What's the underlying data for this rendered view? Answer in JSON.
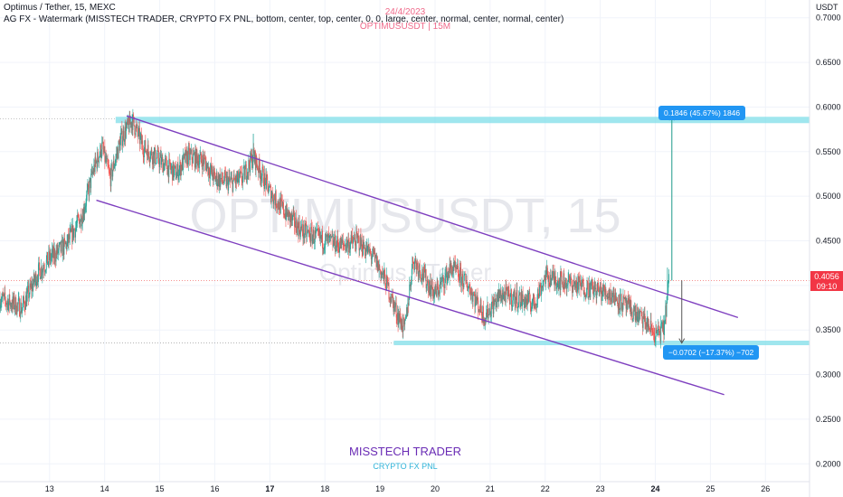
{
  "header": {
    "title": "Optimus / Tether, 15, MEXC",
    "indicator": "AG FX - Watermark (MISSTECH TRADER, CRYPTO FX PNL, bottom, center, top, center, 0, 0, large, center, normal, center, normal, center)"
  },
  "watermark": {
    "date": "24/4/2023",
    "pair_interval": "OPTIMUSUSDT | 15M",
    "big": "OPTIMUSUSDT, 15",
    "sub": "Optimus / Tether"
  },
  "brand": {
    "name": "MISSTECH TRADER",
    "sub": "CRYPTO FX PNL"
  },
  "measurements": {
    "up": "0.1846 (45.67%) 1846",
    "down": "−0.0702 (−17.37%) −702"
  },
  "price_tag": {
    "price": "0.4056",
    "countdown": "09:10"
  },
  "colors": {
    "up": "#26a69a",
    "down": "#ef5350",
    "channel": "#7e3fbf",
    "zone": "#7fdde8",
    "badge": "#2196f3",
    "measure": "#1e9a8a"
  },
  "chart_data": {
    "type": "candlestick",
    "currency": "USDT",
    "x_ticks": [
      "13",
      "14",
      "15",
      "16",
      "17",
      "18",
      "19",
      "20",
      "21",
      "22",
      "23",
      "24",
      "25",
      "26"
    ],
    "y_ticks": [
      "0.7000",
      "0.6500",
      "0.6000",
      "0.5500",
      "0.5000",
      "0.4500",
      "0.4000",
      "0.3500",
      "0.3000",
      "0.2500",
      "0.2000"
    ],
    "ylim": [
      0.18,
      0.72
    ],
    "xlim": [
      12.1,
      26.8
    ],
    "price_path": [
      [
        12.1,
        0.385
      ],
      [
        12.5,
        0.375
      ],
      [
        12.8,
        0.415
      ],
      [
        13.0,
        0.43
      ],
      [
        13.3,
        0.445
      ],
      [
        13.6,
        0.48
      ],
      [
        13.8,
        0.53
      ],
      [
        13.95,
        0.555
      ],
      [
        14.1,
        0.52
      ],
      [
        14.3,
        0.565
      ],
      [
        14.5,
        0.585
      ],
      [
        14.7,
        0.555
      ],
      [
        14.9,
        0.545
      ],
      [
        15.1,
        0.535
      ],
      [
        15.3,
        0.525
      ],
      [
        15.5,
        0.545
      ],
      [
        15.8,
        0.54
      ],
      [
        16.0,
        0.52
      ],
      [
        16.3,
        0.515
      ],
      [
        16.5,
        0.52
      ],
      [
        16.7,
        0.545
      ],
      [
        16.85,
        0.525
      ],
      [
        17.0,
        0.505
      ],
      [
        17.3,
        0.48
      ],
      [
        17.6,
        0.46
      ],
      [
        18.0,
        0.45
      ],
      [
        18.3,
        0.445
      ],
      [
        18.6,
        0.45
      ],
      [
        18.9,
        0.43
      ],
      [
        19.1,
        0.405
      ],
      [
        19.3,
        0.37
      ],
      [
        19.45,
        0.35
      ],
      [
        19.6,
        0.43
      ],
      [
        19.8,
        0.41
      ],
      [
        20.0,
        0.39
      ],
      [
        20.3,
        0.42
      ],
      [
        20.6,
        0.4
      ],
      [
        20.9,
        0.365
      ],
      [
        21.2,
        0.39
      ],
      [
        21.5,
        0.385
      ],
      [
        21.8,
        0.38
      ],
      [
        22.0,
        0.41
      ],
      [
        22.3,
        0.405
      ],
      [
        22.6,
        0.4
      ],
      [
        22.9,
        0.395
      ],
      [
        23.2,
        0.39
      ],
      [
        23.5,
        0.375
      ],
      [
        23.8,
        0.36
      ],
      [
        24.0,
        0.345
      ],
      [
        24.15,
        0.35
      ],
      [
        24.25,
        0.4056
      ]
    ],
    "channel": {
      "upper": [
        [
          14.4,
          0.59
        ],
        [
          25.5,
          0.364
        ]
      ],
      "lower": [
        [
          13.85,
          0.4955
        ],
        [
          25.25,
          0.2775
        ]
      ]
    },
    "zones": {
      "resistance": 0.5855,
      "support": 0.3355
    },
    "measure": {
      "x": 24.3,
      "from": 0.4056,
      "up_to": 0.5902,
      "down_to": 0.3354
    },
    "last_price": 0.4056,
    "previous_close": 0.4056
  }
}
